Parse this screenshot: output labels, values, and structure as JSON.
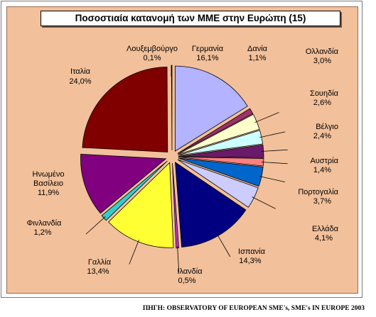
{
  "chart_data": {
    "type": "pie",
    "title": "Ποσοστιαία  κατανομή  των ΜΜΕ στην Ευρώπη (15)",
    "slices": [
      {
        "name": "Γερμανία",
        "pct_label": "16,1%",
        "value": 16.1,
        "color": "#b3b3ff"
      },
      {
        "name": "Δανία",
        "pct_label": "1,1%",
        "value": 1.1,
        "color": "#a0306a"
      },
      {
        "name": "Ολλανδία",
        "pct_label": "3,0%",
        "value": 3.0,
        "color": "#ffffcc"
      },
      {
        "name": "Σουηδία",
        "pct_label": "2,6%",
        "value": 2.6,
        "color": "#ccffff"
      },
      {
        "name": "Βέλγιο",
        "pct_label": "2,4%",
        "value": 2.4,
        "color": "#6a1a6a"
      },
      {
        "name": "Αυστρία",
        "pct_label": "1,4%",
        "value": 1.4,
        "color": "#ff8080"
      },
      {
        "name": "Πορτογαλία",
        "pct_label": "3,7%",
        "value": 3.7,
        "color": "#0066cc"
      },
      {
        "name": "Ελλάδα",
        "pct_label": "4,1%",
        "value": 4.1,
        "color": "#ccccff"
      },
      {
        "name": "Ισπανία",
        "pct_label": "14,3%",
        "value": 14.3,
        "color": "#000080"
      },
      {
        "name": "Ιρλανδία",
        "pct_label": "0,5%",
        "value": 0.5,
        "color": "#cc33cc"
      },
      {
        "name": "Γαλλία",
        "pct_label": "13,4%",
        "value": 13.4,
        "color": "#ffff33"
      },
      {
        "name": "Φινλανδία",
        "pct_label": "1,2%",
        "value": 1.2,
        "color": "#33cccc"
      },
      {
        "name": "Ηνωμένο Βασίλειο",
        "pct_label": "11,9%",
        "value": 11.9,
        "color": "#800080"
      },
      {
        "name": "Ιταλία",
        "pct_label": "24,0%",
        "value": 24.0,
        "color": "#800000"
      },
      {
        "name": "Λουξεμβούργο",
        "pct_label": "0,1%",
        "value": 0.1,
        "color": "#ffffff"
      }
    ],
    "leader_lines_for": [
      "Ολλανδία",
      "Σουηδία",
      "Βέλγιο",
      "Αυστρία",
      "Πορτογαλία",
      "Ελλάδα",
      "Ισπανία",
      "Ιρλανδία",
      "Γαλλία",
      "Φινλανδία"
    ]
  },
  "labels": {
    "germany": [
      "Γερμανία",
      "16,1%"
    ],
    "denmark": [
      "Δανία",
      "1,1%"
    ],
    "netherlands": [
      "Ολλανδία",
      "3,0%"
    ],
    "sweden": [
      "Σουηδία",
      "2,6%"
    ],
    "belgium": [
      "Βέλγιο",
      "2,4%"
    ],
    "austria": [
      "Αυστρία",
      "1,4%"
    ],
    "portugal": [
      "Πορτογαλία",
      "3,7%"
    ],
    "greece": [
      "Ελλάδα",
      "4,1%"
    ],
    "spain": [
      "Ισπανία",
      "14,3%"
    ],
    "ireland": [
      "Ιλανδία",
      "0,5%"
    ],
    "france": [
      "Γαλλία",
      "13,4%"
    ],
    "finland": [
      "Φινλανδία",
      "1,2%"
    ],
    "uk": [
      "Ηνωμένο",
      "Βασίλειο",
      "11,9%"
    ],
    "italy": [
      "Ιταλία",
      "24,0%"
    ],
    "luxembourg": [
      "Λουξεμβούργο",
      "0,1%"
    ]
  },
  "source": "ΠΗΓΗ: OBSERVATORY OF EUROPEAN SME's, SME's IN EUROPE 2003"
}
